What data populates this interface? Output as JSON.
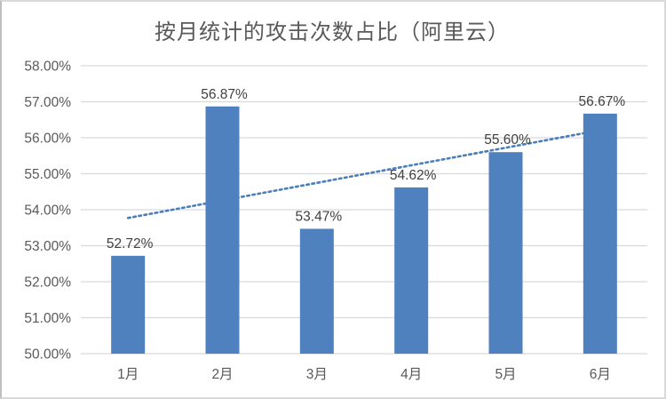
{
  "chart_data": {
    "type": "bar",
    "title": "按月统计的攻击次数占比（阿里云）",
    "categories": [
      "1月",
      "2月",
      "3月",
      "4月",
      "5月",
      "6月"
    ],
    "values": [
      52.72,
      56.87,
      53.47,
      54.62,
      55.6,
      56.67
    ],
    "data_labels": [
      "52.72%",
      "56.87%",
      "53.47%",
      "54.62%",
      "55.60%",
      "56.67%"
    ],
    "y_ticks": [
      "58.00%",
      "57.00%",
      "56.00%",
      "55.00%",
      "54.00%",
      "53.00%",
      "52.00%",
      "51.00%",
      "50.00%"
    ],
    "ylim": [
      50,
      58
    ],
    "tick_step": 1,
    "xlabel": "",
    "ylabel": "",
    "grid": true,
    "legend": "none",
    "colors": {
      "bar": "#4e81bd",
      "trendline": "#4a7ebb",
      "gridline": "#d9d9d9",
      "axis_labels": "#595959",
      "value_labels": "#404040",
      "title": "#595959"
    },
    "trendline": {
      "style": "dotted",
      "start_value": 53.77,
      "end_value": 56.21
    }
  }
}
